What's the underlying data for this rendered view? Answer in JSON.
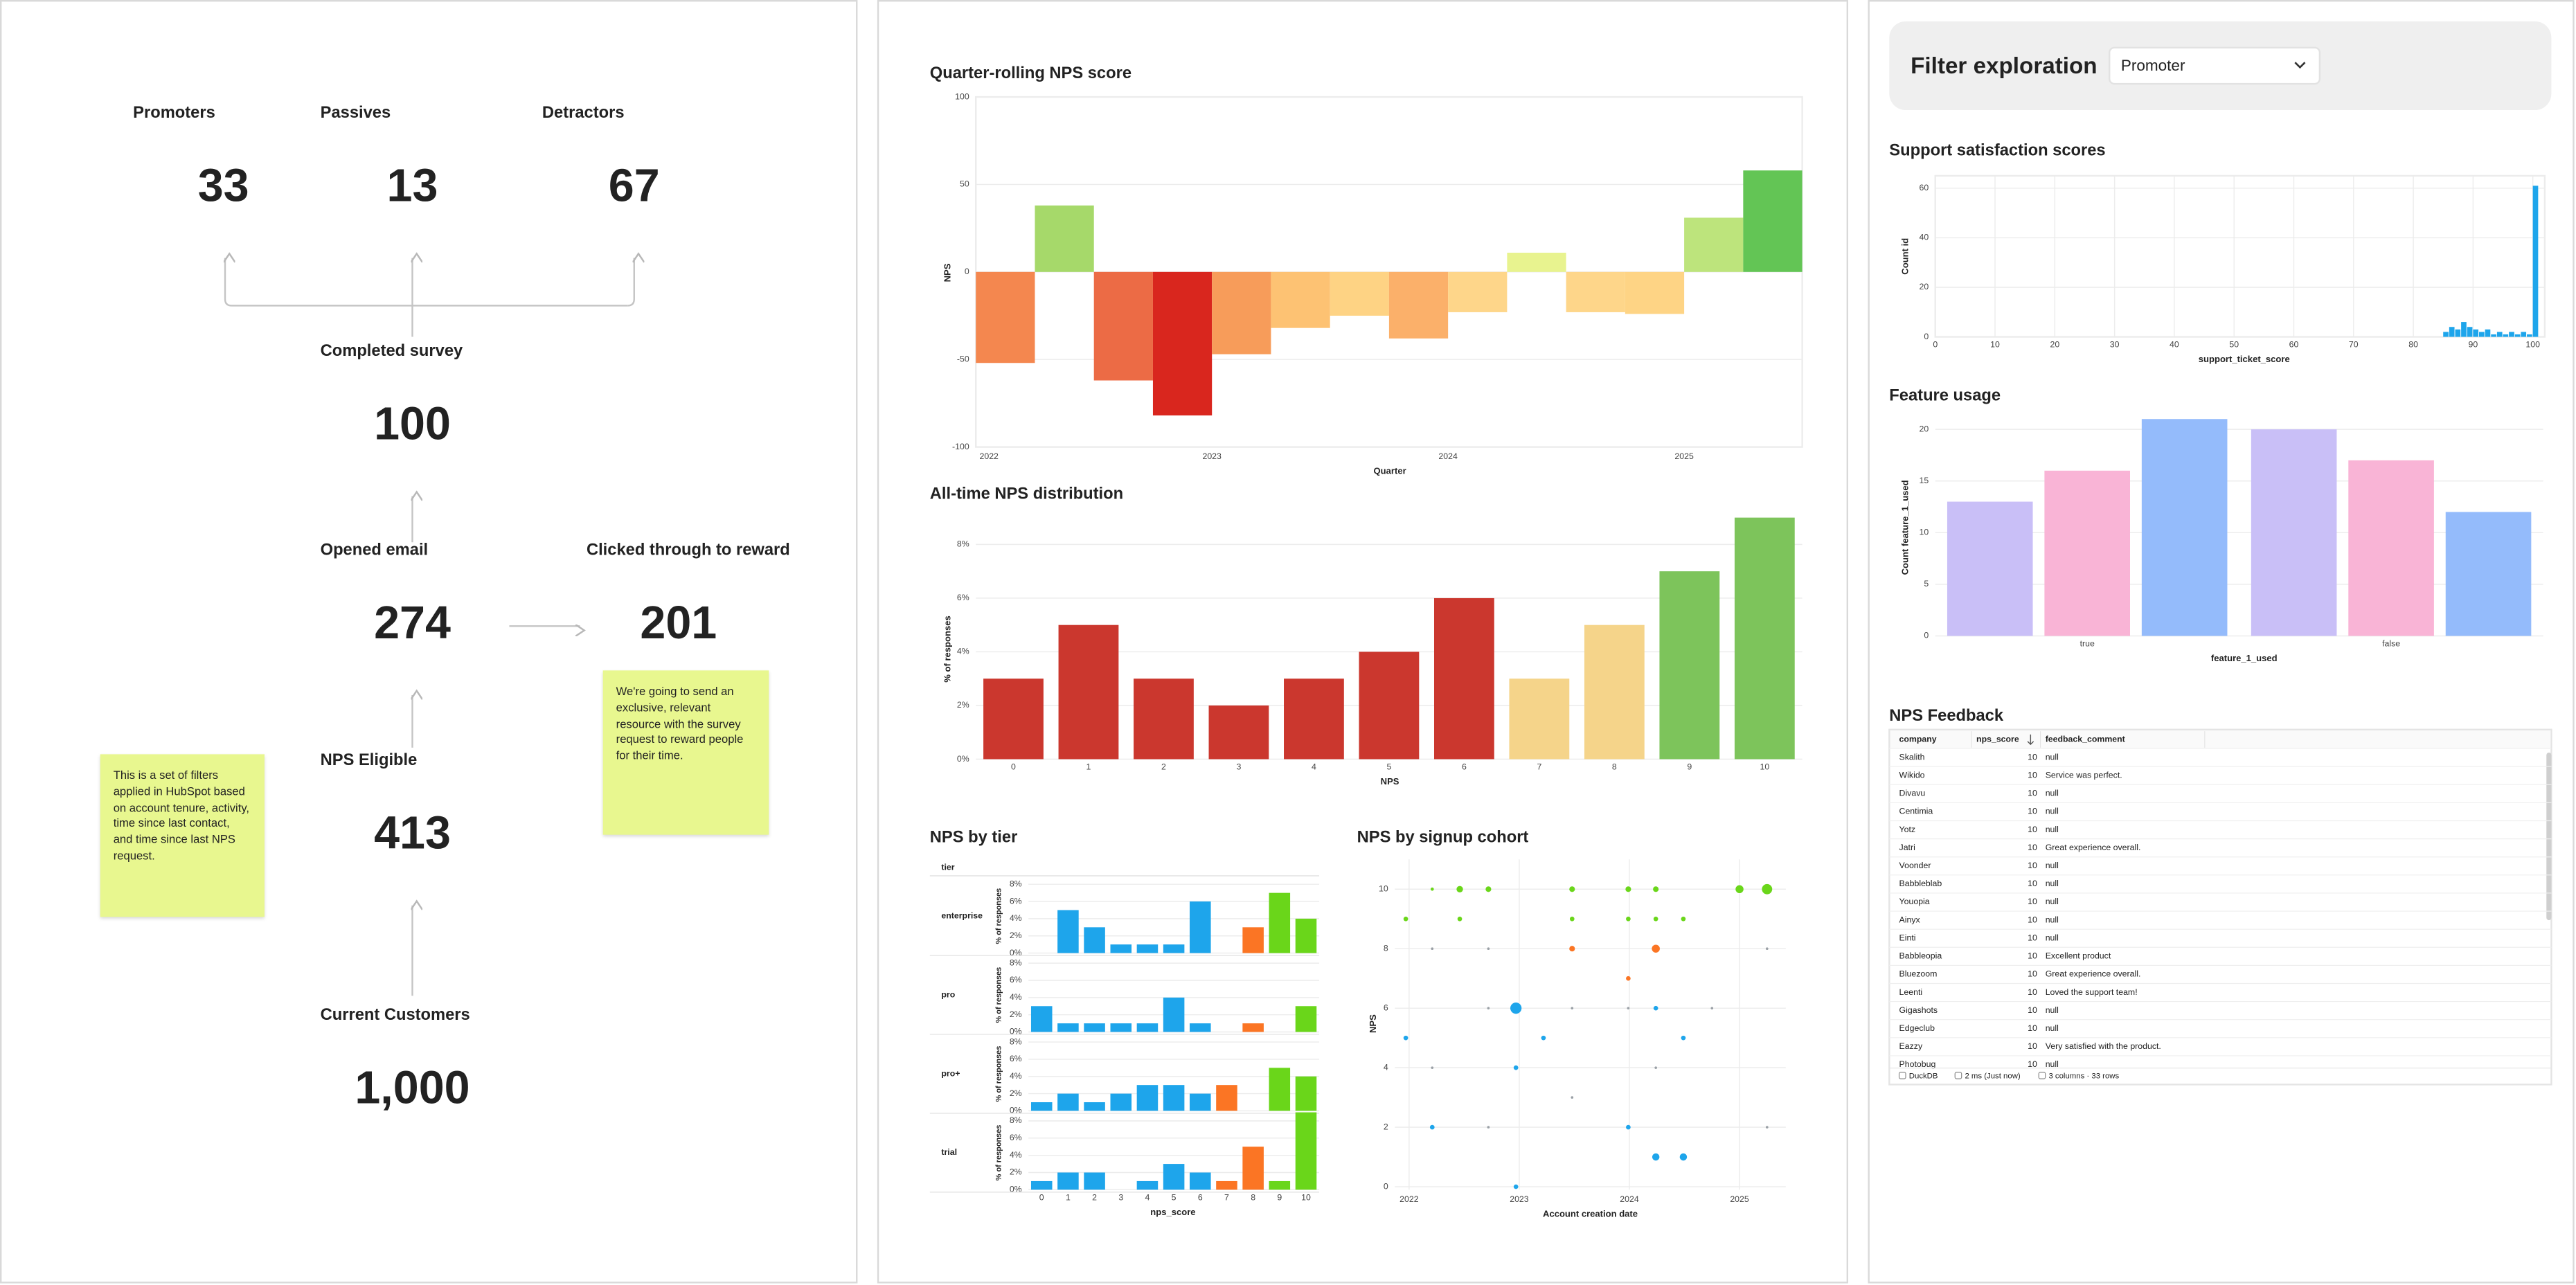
{
  "funnel": {
    "nodes": [
      {
        "label": "Promoters",
        "value": "33"
      },
      {
        "label": "Passives",
        "value": "13"
      },
      {
        "label": "Detractors",
        "value": "67"
      },
      {
        "label": "Completed survey",
        "value": "100"
      },
      {
        "label": "Opened email",
        "value": "274"
      },
      {
        "label": "Clicked through to reward",
        "value": "201"
      },
      {
        "label": "NPS Eligible",
        "value": "413"
      },
      {
        "label": "Current Customers",
        "value": "1,000"
      }
    ]
  },
  "notes": [
    "This is a set of filters applied in HubSpot based on account tenure, activity, time since last contact, and time since last NPS request.",
    "We're going to send an exclusive, relevant resource with the survey request to reward people for their time."
  ],
  "filter": {
    "title": "Filter exploration",
    "selected": "Promoter"
  },
  "chart_data": [
    {
      "type": "bar",
      "title": "Quarter-rolling NPS score",
      "categories": [
        "2022",
        null,
        null,
        null,
        "2023",
        null,
        null,
        null,
        "2024",
        null,
        null,
        null,
        "2025",
        null
      ],
      "values": [
        -52,
        38,
        -62,
        -82,
        -47,
        -32,
        -25,
        -38,
        -23,
        11,
        -23,
        -24,
        31,
        58
      ],
      "colors": [
        "#f4874f",
        "#a6d96a",
        "#ec6b45",
        "#d9261e",
        "#f79c5a",
        "#fdc273",
        "#fed384",
        "#fbb06a",
        "#fed68a",
        "#e8f38f",
        "#fed68a",
        "#fed485",
        "#bde47c",
        "#63c555"
      ],
      "xlabel": "Quarter",
      "ylabel": "NPS",
      "ylim": [
        -100,
        100
      ],
      "yticks": [
        -100,
        -50,
        0,
        50,
        100
      ],
      "grid": true
    },
    {
      "type": "bar",
      "title": "All-time NPS distribution",
      "categories": [
        "0",
        "1",
        "2",
        "3",
        "4",
        "5",
        "6",
        "7",
        "8",
        "9",
        "10"
      ],
      "values": [
        3,
        5,
        3,
        2,
        3,
        4,
        6,
        3,
        5,
        7,
        9
      ],
      "colors": [
        "#cb372e",
        "#cb372e",
        "#cb372e",
        "#cb372e",
        "#cb372e",
        "#cb372e",
        "#cb372e",
        "#f5d48a",
        "#f5d48a",
        "#7dc45b",
        "#7dc45b"
      ],
      "xlabel": "NPS",
      "ylabel": "% of responses",
      "ylim": [
        0,
        9
      ],
      "yticks": [
        {
          "value": 0,
          "label": "0%"
        },
        {
          "value": 2,
          "label": "2%"
        },
        {
          "value": 4,
          "label": "4%"
        },
        {
          "value": 6,
          "label": "6%"
        },
        {
          "value": 8,
          "label": "8%"
        }
      ],
      "grid": true
    },
    {
      "type": "facet_bar",
      "title": "NPS by tier",
      "facet_label": "tier",
      "categories": [
        "0",
        "1",
        "2",
        "3",
        "4",
        "5",
        "6",
        "7",
        "8",
        "9",
        "10"
      ],
      "colors": [
        "#1ea5eb",
        "#1ea5eb",
        "#1ea5eb",
        "#1ea5eb",
        "#1ea5eb",
        "#1ea5eb",
        "#1ea5eb",
        "#fb7524",
        "#fb7524",
        "#6ad61a",
        "#6ad61a"
      ],
      "series": [
        {
          "name": "enterprise",
          "values": [
            0,
            5,
            3,
            1,
            1,
            1,
            6,
            0,
            3,
            7,
            4
          ]
        },
        {
          "name": "pro",
          "values": [
            3,
            1,
            1,
            1,
            1,
            4,
            1,
            0,
            1,
            0,
            3
          ]
        },
        {
          "name": "pro+",
          "values": [
            1,
            2,
            1,
            2,
            3,
            3,
            2,
            3,
            0,
            5,
            4
          ]
        },
        {
          "name": "trial",
          "values": [
            1,
            2,
            2,
            0,
            1,
            3,
            2,
            1,
            5,
            1,
            9
          ]
        }
      ],
      "xlabel": "nps_score",
      "ylabel": "% of responses",
      "ylim": [
        0,
        8.6
      ],
      "yticks": [
        {
          "value": 0,
          "label": "0%"
        },
        {
          "value": 2,
          "label": "2%"
        },
        {
          "value": 4,
          "label": "4%"
        },
        {
          "value": 6,
          "label": "6%"
        },
        {
          "value": 8,
          "label": "8%"
        }
      ],
      "grid": true
    },
    {
      "type": "scatter",
      "title": "NPS by signup cohort",
      "xlabel": "Account creation date",
      "ylabel": "NPS",
      "xlim": [
        2021.87,
        2025.42
      ],
      "xticks": [
        2022,
        2023,
        2024,
        2025
      ],
      "ylim": [
        -0.1,
        11
      ],
      "yticks": [
        0,
        2,
        4,
        6,
        8,
        10
      ],
      "grid": true,
      "series": [
        {
          "color": "#6ad61a",
          "x": [
            2022.21,
            2022.46,
            2022.72,
            2023.48,
            2023.99,
            2024.24,
            2025.0,
            2025.25,
            2021.97,
            2022.46,
            2023.48,
            2023.99,
            2024.24,
            2024.49
          ],
          "values": [
            10,
            10,
            10,
            10,
            10,
            10,
            10,
            10,
            9,
            9,
            9,
            9,
            9,
            9
          ],
          "sizes": [
            0.5,
            2,
            1.5,
            1.5,
            1.5,
            1.5,
            3,
            5,
            1,
            1,
            1,
            1,
            1,
            1
          ]
        },
        {
          "color": "#fb7524",
          "x": [
            2023.48,
            2024.24,
            2023.99
          ],
          "values": [
            8,
            8,
            7
          ],
          "sizes": [
            1.5,
            3,
            1
          ]
        },
        {
          "color": "#1ea5eb",
          "x": [
            2022.97,
            2024.24,
            2021.97,
            2023.22,
            2024.49,
            2022.97,
            2022.21,
            2023.99,
            2024.24,
            2024.49,
            2022.97
          ],
          "values": [
            6,
            6,
            5,
            5,
            5,
            4,
            2,
            2,
            1,
            1,
            0
          ],
          "sizes": [
            6,
            1,
            1,
            1,
            1,
            1,
            1,
            1,
            2.5,
            2.5,
            1
          ]
        },
        {
          "color": "#9aa0a6",
          "x": [
            2022.21,
            2022.72,
            2025.25,
            2022.72,
            2023.48,
            2023.99,
            2024.75,
            2022.21,
            2024.24,
            2023.48,
            2022.72,
            2025.25
          ],
          "values": [
            8,
            8,
            8,
            6,
            6,
            6,
            6,
            4,
            4,
            3,
            2,
            2
          ],
          "sizes": [
            0.3,
            0.3,
            0.3,
            0.3,
            0.3,
            0.3,
            0.3,
            0.3,
            0.3,
            0.3,
            0.3,
            0.3
          ]
        }
      ]
    },
    {
      "type": "histogram",
      "title": "Support satisfaction scores",
      "xlabel": "support_ticket_score",
      "ylabel": "Count id",
      "bins": [
        85,
        86,
        87,
        88,
        89,
        90,
        91,
        92,
        93,
        94,
        95,
        96,
        97,
        98,
        99,
        100,
        101
      ],
      "values": [
        2,
        4,
        3,
        6,
        4,
        3,
        2,
        3,
        1,
        2,
        1,
        2,
        1,
        2,
        1,
        61
      ],
      "color": "#1ea5eb",
      "xlim": [
        0,
        102
      ],
      "xticks": [
        0,
        10,
        20,
        30,
        40,
        50,
        60,
        70,
        80,
        90,
        100
      ],
      "ylim": [
        0,
        65
      ],
      "yticks": [
        0,
        20,
        40,
        60
      ],
      "grid": true
    },
    {
      "type": "grouped_bar",
      "title": "Feature usage",
      "xlabel": "feature_1_used",
      "ylabel": "Count feature_1_used",
      "categories": [
        "true",
        "false"
      ],
      "series": [
        {
          "color": "#c9bff7",
          "values": [
            13,
            20
          ]
        },
        {
          "color": "#f9b4d6",
          "values": [
            16,
            17
          ]
        },
        {
          "color": "#94bbfb",
          "values": [
            21,
            12
          ]
        }
      ],
      "ylim": [
        0,
        21
      ],
      "yticks": [
        0,
        5,
        10,
        15,
        20
      ],
      "grid": true
    }
  ],
  "table": {
    "title": "NPS Feedback",
    "columns": [
      "company",
      "nps_score",
      "feedback_comment"
    ],
    "rows": [
      [
        "Skalith",
        "10",
        "null"
      ],
      [
        "Wikido",
        "10",
        "Service was perfect."
      ],
      [
        "Divavu",
        "10",
        "null"
      ],
      [
        "Centimia",
        "10",
        "null"
      ],
      [
        "Yotz",
        "10",
        "null"
      ],
      [
        "Jatri",
        "10",
        "Great experience overall."
      ],
      [
        "Voonder",
        "10",
        "null"
      ],
      [
        "Babbleblab",
        "10",
        "null"
      ],
      [
        "Youopia",
        "10",
        "null"
      ],
      [
        "Ainyx",
        "10",
        "null"
      ],
      [
        "Einti",
        "10",
        "null"
      ],
      [
        "Babbleopia",
        "10",
        "Excellent product"
      ],
      [
        "Bluezoom",
        "10",
        "Great experience overall."
      ],
      [
        "Leenti",
        "10",
        "Loved the support team!"
      ],
      [
        "Gigashots",
        "10",
        "null"
      ],
      [
        "Edgeclub",
        "10",
        "null"
      ],
      [
        "Eazzy",
        "10",
        "Very satisfied with the product."
      ],
      [
        "Photobug",
        "10",
        "null"
      ]
    ],
    "footer": [
      "DuckDB",
      "2 ms (Just now)",
      "3 columns · 33 rows"
    ]
  }
}
